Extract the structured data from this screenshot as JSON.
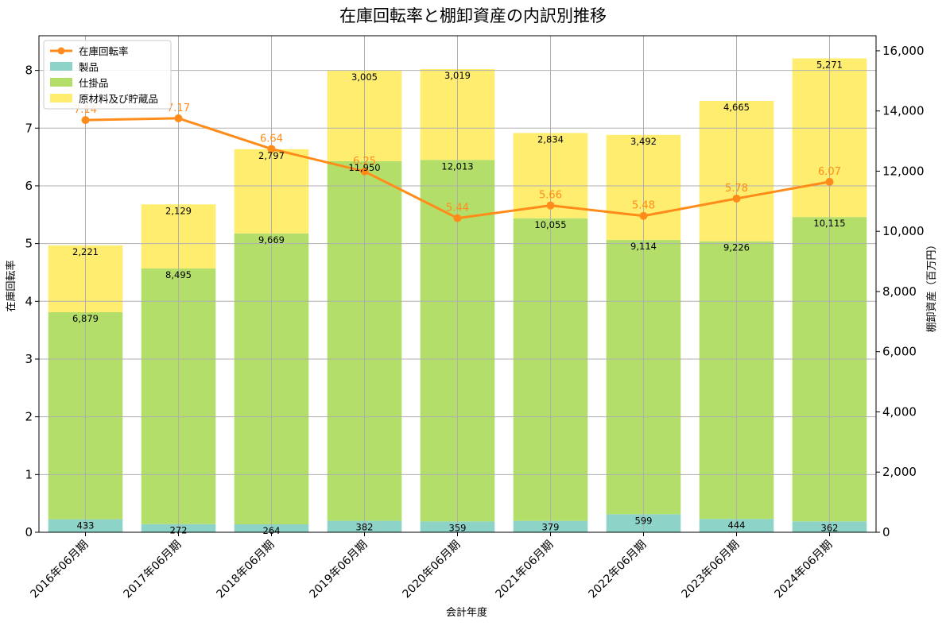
{
  "chart_data": {
    "type": "bar",
    "stacked": true,
    "title": "在庫回転率と棚卸資産の内訳別推移",
    "xlabel": "会計年度",
    "ylabel_left": "在庫回転率",
    "ylabel_right": "棚卸資産（百万円）",
    "categories": [
      "2016年06月期",
      "2017年06月期",
      "2018年06月期",
      "2019年06月期",
      "2020年06月期",
      "2021年06月期",
      "2022年06月期",
      "2023年06月期",
      "2024年06月期"
    ],
    "series": [
      {
        "name": "製品",
        "color": "#8dd3c7",
        "values": [
          433,
          272,
          264,
          382,
          359,
          379,
          599,
          444,
          362
        ]
      },
      {
        "name": "仕掛品",
        "color": "#b3de69",
        "values": [
          6879,
          8495,
          9669,
          11950,
          12013,
          10055,
          9114,
          9226,
          10115
        ]
      },
      {
        "name": "原材料及び貯蔵品",
        "color": "#ffed6f",
        "values": [
          2221,
          2129,
          2797,
          3005,
          3019,
          2834,
          3492,
          4665,
          5271
        ]
      }
    ],
    "line": {
      "name": "在庫回転率",
      "color": "#ff8c1a",
      "values": [
        7.14,
        7.17,
        6.64,
        6.25,
        5.44,
        5.66,
        5.48,
        5.78,
        6.07
      ],
      "labels": [
        "7.14",
        "7.17",
        "6.64",
        "6.25",
        "5.44",
        "5.66",
        "5.48",
        "5.78",
        "6.07"
      ]
    },
    "ylim_left": [
      0,
      8.6
    ],
    "ylim_right": [
      0,
      16500
    ],
    "yticks_left": [
      0,
      1,
      2,
      3,
      4,
      5,
      6,
      7,
      8
    ],
    "yticks_right": [
      0,
      2000,
      4000,
      6000,
      8000,
      10000,
      12000,
      14000,
      16000
    ],
    "yticks_right_labels": [
      "0",
      "2,000",
      "4,000",
      "6,000",
      "8,000",
      "10,000",
      "12,000",
      "14,000",
      "16,000"
    ],
    "legend": [
      "在庫回転率",
      "製品",
      "仕掛品",
      "原材料及び貯蔵品"
    ],
    "legend_position": "top-left",
    "grid": true
  }
}
